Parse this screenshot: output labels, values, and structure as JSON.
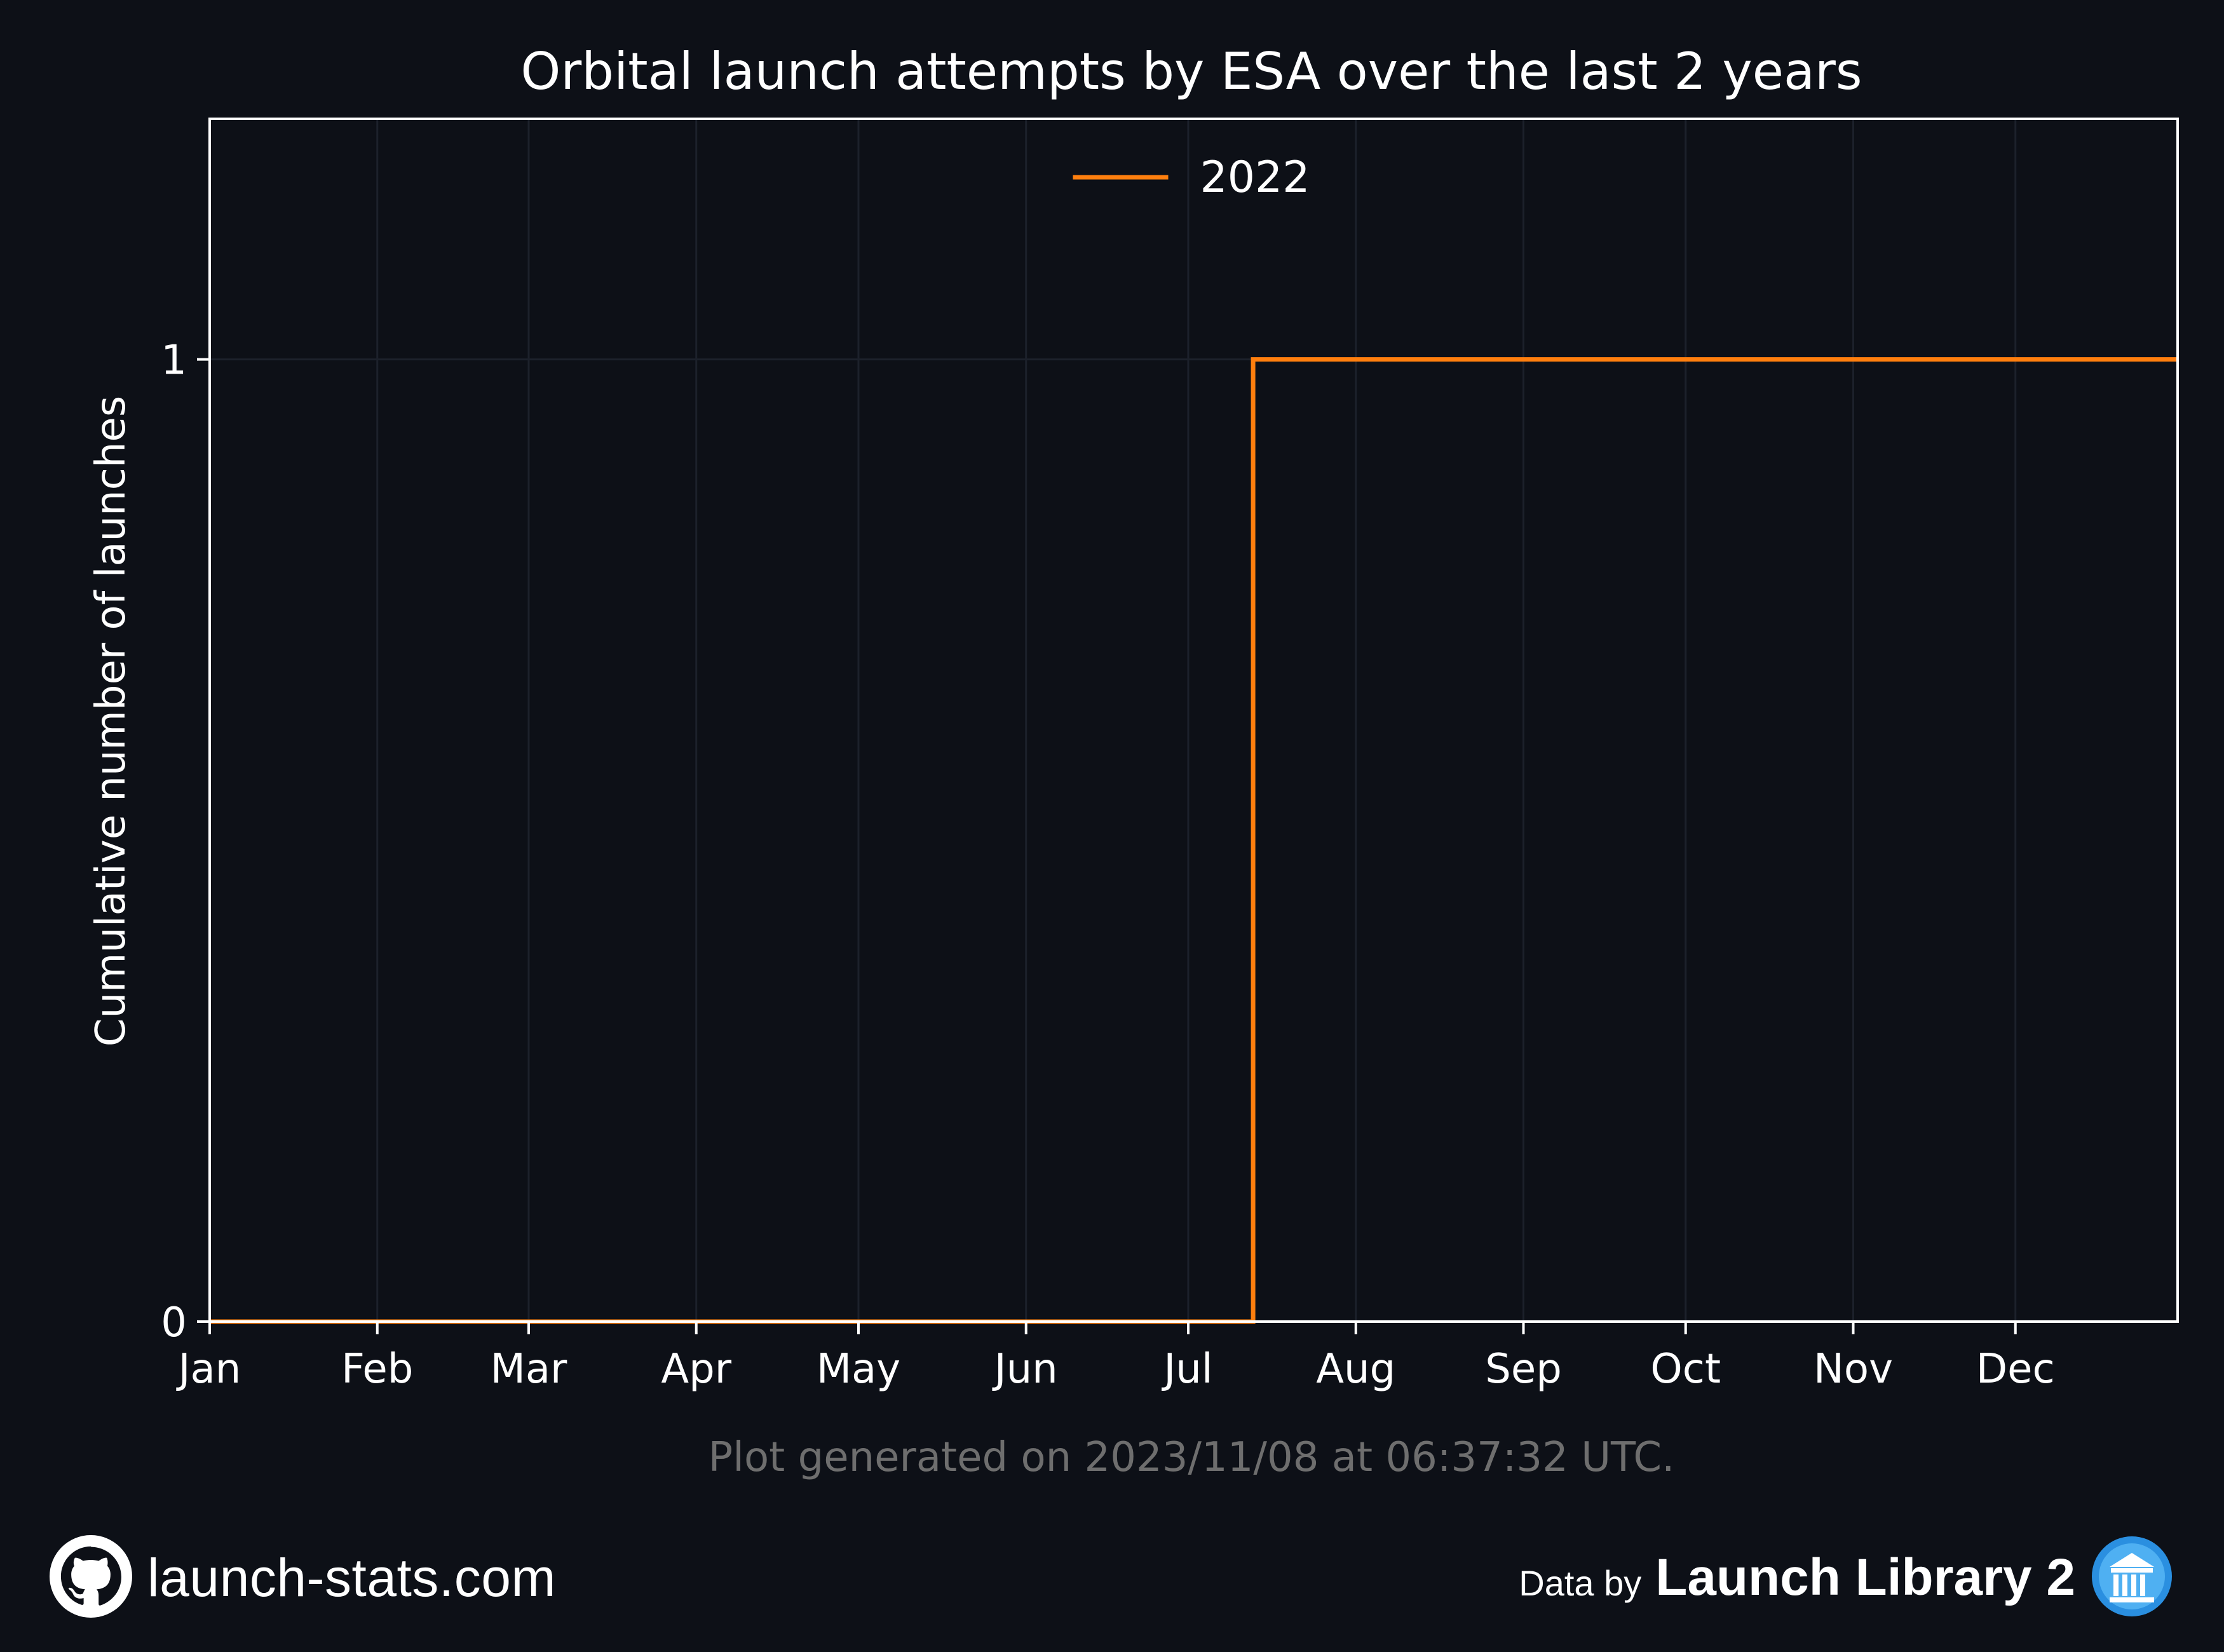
{
  "chart_data": {
    "type": "line",
    "title": "Orbital launch attempts by ESA over the last 2 years",
    "ylabel": "Cumulative number of launches",
    "xlabel": "",
    "x_ticks": [
      "Jan",
      "Feb",
      "Mar",
      "Apr",
      "May",
      "Jun",
      "Jul",
      "Aug",
      "Sep",
      "Oct",
      "Nov",
      "Dec"
    ],
    "y_ticks": [
      0,
      1
    ],
    "xlim": [
      "2022-01-01",
      "2022-12-31"
    ],
    "ylim": [
      0,
      1.25
    ],
    "grid": true,
    "legend_position": "top-center",
    "step": "post",
    "series": [
      {
        "name": "2022",
        "color": "#ff7f0e",
        "points": [
          {
            "x": "2022-01-01",
            "y": 0
          },
          {
            "x": "2022-07-13",
            "y": 1
          },
          {
            "x": "2022-12-31",
            "y": 1
          }
        ]
      }
    ]
  },
  "footnote": "Plot generated on 2023/11/08 at 06:37:32 UTC.",
  "footer": {
    "site": "launch-stats.com",
    "site_icon": "github-icon",
    "data_by": "Data by",
    "source": "Launch Library 2",
    "source_icon": "launch-library-logo-icon"
  },
  "colors": {
    "background": "#0d1017",
    "axes": "#ffffff",
    "grid": "#1c212b",
    "text": "#ffffff",
    "muted_text": "#6e6e6e",
    "accent": "#ff7f0e"
  }
}
